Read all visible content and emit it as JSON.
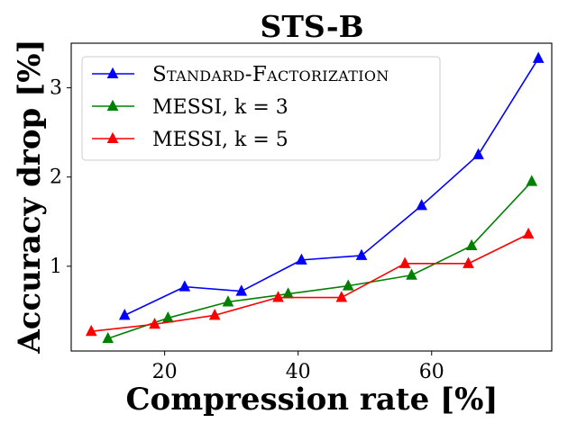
{
  "chart_data": {
    "type": "line",
    "title": "STS-B",
    "xlabel": "Compression rate [%]",
    "ylabel": "Accuracy drop [%]",
    "xlim": [
      6,
      78
    ],
    "ylim": [
      0.05,
      3.5
    ],
    "xticks": [
      20,
      40,
      60
    ],
    "yticks": [
      1,
      2,
      3
    ],
    "grid": false,
    "legend_position": "top-left",
    "series": [
      {
        "name": "Standard-Factorization",
        "color": "#0000ff",
        "marker": "triangle",
        "x": [
          14,
          23,
          31.5,
          40.5,
          49.5,
          58.5,
          67,
          76
        ],
        "y": [
          0.45,
          0.77,
          0.72,
          1.07,
          1.12,
          1.68,
          2.25,
          3.33
        ]
      },
      {
        "name": "MESSI, k = 3",
        "color": "#008000",
        "marker": "triangle",
        "x": [
          11.5,
          20.5,
          29.5,
          38.5,
          47.5,
          57,
          66,
          75
        ],
        "y": [
          0.19,
          0.42,
          0.6,
          0.69,
          0.78,
          0.9,
          1.23,
          1.95
        ]
      },
      {
        "name": "MESSI, k = 5",
        "color": "#ff0000",
        "marker": "triangle",
        "x": [
          9,
          18.5,
          27.5,
          37,
          46.5,
          56,
          65.5,
          74.5
        ],
        "y": [
          0.27,
          0.35,
          0.45,
          0.65,
          0.65,
          1.03,
          1.03,
          1.36
        ]
      }
    ]
  }
}
